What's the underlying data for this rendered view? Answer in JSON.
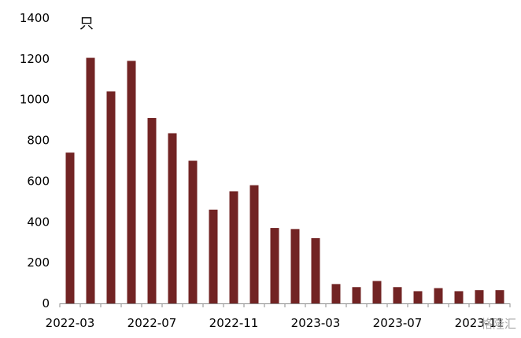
{
  "chart_data": {
    "type": "bar",
    "unit_label": "只",
    "bar_color": "#722424",
    "ylim": [
      0,
      1400
    ],
    "y_ticks": [
      0,
      200,
      400,
      600,
      800,
      1000,
      1200,
      1400
    ],
    "categories": [
      "2022-03",
      "2022-04",
      "2022-05",
      "2022-06",
      "2022-07",
      "2022-08",
      "2022-09",
      "2022-10",
      "2022-11",
      "2022-12",
      "2023-01",
      "2023-02",
      "2023-03",
      "2023-04",
      "2023-05",
      "2023-06",
      "2023-07",
      "2023-08",
      "2023-09",
      "2023-10",
      "2023-11",
      "2023-12"
    ],
    "x_tick_labels": [
      "2022-03",
      "2022-07",
      "2022-11",
      "2023-03",
      "2023-07",
      "2023-11"
    ],
    "values": [
      740,
      1205,
      1040,
      1190,
      910,
      835,
      700,
      460,
      550,
      580,
      370,
      365,
      320,
      95,
      80,
      110,
      80,
      60,
      75,
      60,
      65,
      65
    ],
    "grid": false
  },
  "watermark": {
    "text": "格隆汇"
  }
}
